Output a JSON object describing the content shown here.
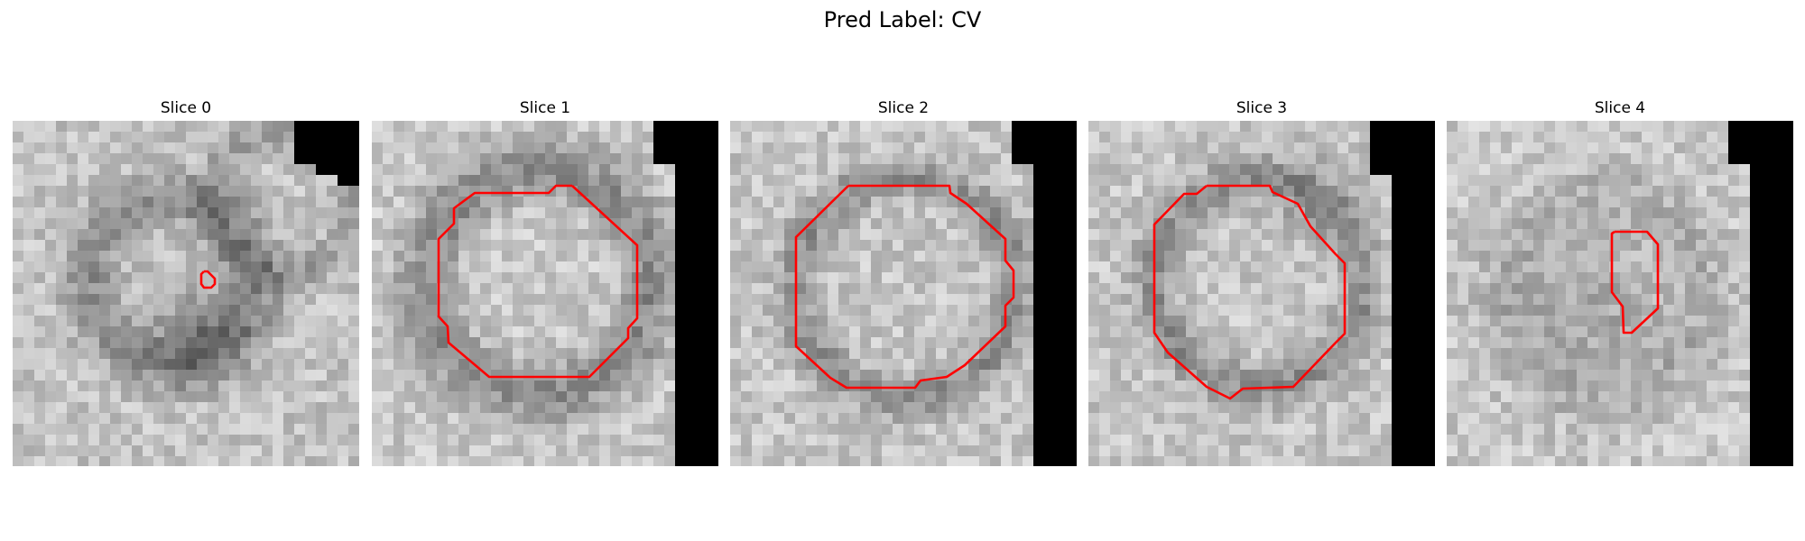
{
  "figure": {
    "title": "Pred Label: CV"
  },
  "panels": [
    {
      "title": "Slice 0",
      "contour": "small-loop"
    },
    {
      "title": "Slice 1",
      "contour": "large-ring"
    },
    {
      "title": "Slice 2",
      "contour": "large-ring"
    },
    {
      "title": "Slice 3",
      "contour": "large-ring"
    },
    {
      "title": "Slice 4",
      "contour": "small-loop"
    }
  ],
  "colors": {
    "contour": "#ff0000",
    "background": "#ffffff",
    "mask": "#000000"
  }
}
